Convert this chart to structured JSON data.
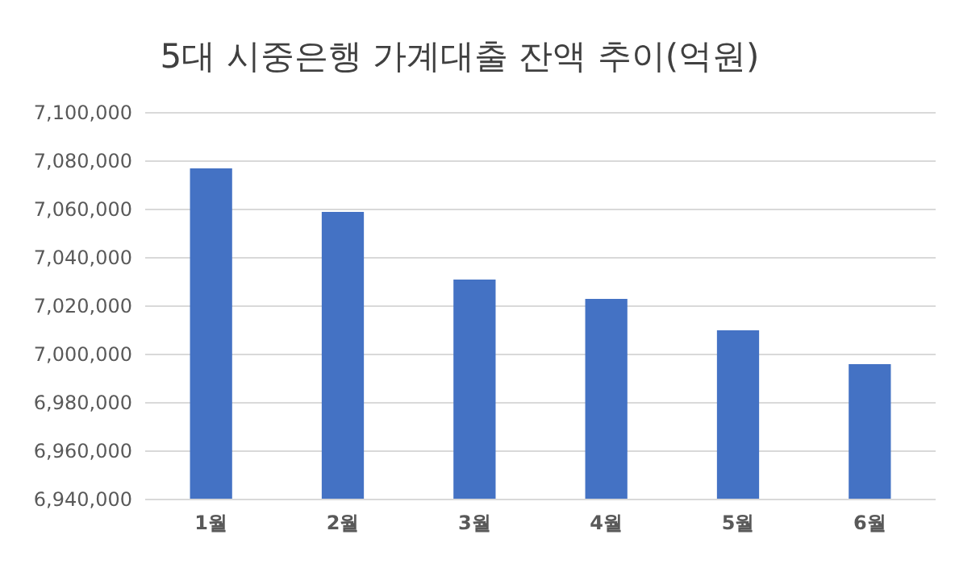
{
  "chart_data": {
    "type": "bar",
    "title": "5대 시중은행 가계대출 잔액 추이(억원)",
    "categories": [
      "1월",
      "2월",
      "3월",
      "4월",
      "5월",
      "6월"
    ],
    "values": [
      7077000,
      7059000,
      7031000,
      7023000,
      7010000,
      6996000
    ],
    "color": "#4472c4",
    "ylim": [
      6940000,
      7100000
    ],
    "yticks": [
      {
        "value": 6940000,
        "label": "6,940,000"
      },
      {
        "value": 6960000,
        "label": "6,960,000"
      },
      {
        "value": 6980000,
        "label": "6,980,000"
      },
      {
        "value": 7000000,
        "label": "7,000,000"
      },
      {
        "value": 7020000,
        "label": "7,020,000"
      },
      {
        "value": 7040000,
        "label": "7,040,000"
      },
      {
        "value": 7060000,
        "label": "7,060,000"
      },
      {
        "value": 7080000,
        "label": "7,080,000"
      },
      {
        "value": 7100000,
        "label": "7,100,000"
      }
    ],
    "grid": "y"
  }
}
